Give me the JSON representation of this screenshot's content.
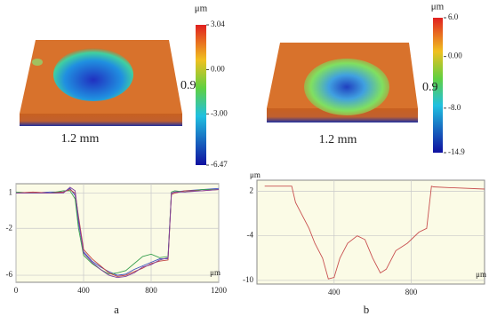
{
  "chart_data": [
    {
      "type": "surface",
      "unit": "μm",
      "x_label": "1.2 mm",
      "y_label": "0.9",
      "clim": [
        -6.47,
        3.04
      ],
      "cticks": [
        3.04,
        {
          "value": 0,
          "label": "0.00"
        },
        {
          "value": -3,
          "label": "-3.00"
        },
        -6.47
      ]
    },
    {
      "type": "surface",
      "unit": "μm",
      "x_label": "1.2 mm",
      "y_label": "0.9",
      "clim": [
        -14.9,
        6
      ],
      "cticks": [
        {
          "value": 6,
          "label": "6.0"
        },
        {
          "value": 0,
          "label": "0.00"
        },
        {
          "value": -8,
          "label": "-8.0"
        },
        -14.9
      ]
    },
    {
      "type": "line",
      "caption": "a",
      "x_unit": "μm",
      "grid": true,
      "xlim": [
        0,
        1200
      ],
      "xticks": [
        0,
        400,
        800,
        1200
      ],
      "ylim": [
        -6.6,
        1.8
      ],
      "yticks": [
        1,
        -2,
        -6
      ],
      "x": [
        0,
        100,
        200,
        280,
        320,
        350,
        370,
        400,
        450,
        500,
        550,
        600,
        650,
        700,
        750,
        800,
        850,
        900,
        920,
        940,
        1000,
        1100,
        1200
      ],
      "series": [
        {
          "color": "#3a4fc0",
          "values": [
            1.0,
            1.0,
            1.1,
            1.1,
            1.4,
            0.8,
            -1.5,
            -4.0,
            -4.8,
            -5.3,
            -5.7,
            -6.0,
            -5.9,
            -5.5,
            -5.2,
            -4.9,
            -4.6,
            -4.6,
            1.0,
            1.1,
            1.2,
            1.3,
            1.4
          ]
        },
        {
          "color": "#3aa050",
          "values": [
            1.1,
            1.0,
            1.0,
            1.2,
            1.2,
            0.5,
            -2.0,
            -4.3,
            -5.0,
            -5.5,
            -5.9,
            -5.8,
            -5.6,
            -5.0,
            -4.4,
            -4.2,
            -4.5,
            -4.4,
            1.1,
            1.2,
            1.1,
            1.3,
            1.3
          ]
        },
        {
          "color": "#c04040",
          "values": [
            1.0,
            1.1,
            1.0,
            1.1,
            1.3,
            1.0,
            -1.0,
            -3.8,
            -4.6,
            -5.2,
            -5.8,
            -6.1,
            -6.0,
            -5.7,
            -5.4,
            -5.0,
            -4.8,
            -4.7,
            0.9,
            1.0,
            1.2,
            1.2,
            1.3
          ]
        },
        {
          "color": "#8040a0",
          "values": [
            1.0,
            1.0,
            1.0,
            1.0,
            1.5,
            1.2,
            -1.2,
            -4.1,
            -4.9,
            -5.5,
            -6.0,
            -6.2,
            -6.1,
            -5.8,
            -5.3,
            -5.1,
            -4.7,
            -4.5,
            1.0,
            1.1,
            1.1,
            1.2,
            1.3
          ]
        }
      ]
    },
    {
      "type": "line",
      "caption": "b",
      "x_unit": "μm",
      "y_unit": "μm",
      "grid": true,
      "xlim": [
        0,
        1180
      ],
      "xticks": [
        400,
        800
      ],
      "ylim": [
        -10.5,
        3.5
      ],
      "yticks": [
        2,
        -4,
        -10
      ],
      "x": [
        40,
        180,
        200,
        230,
        270,
        300,
        340,
        370,
        400,
        430,
        470,
        520,
        560,
        600,
        640,
        670,
        720,
        780,
        840,
        880,
        905,
        915,
        1000,
        1180
      ],
      "series": [
        {
          "color": "#c85050",
          "values": [
            2.7,
            2.7,
            0.5,
            -1.0,
            -3.0,
            -5.0,
            -7.0,
            -9.8,
            -9.6,
            -7.0,
            -5.0,
            -4.0,
            -4.5,
            -7.0,
            -9.0,
            -8.5,
            -6.0,
            -5.0,
            -3.5,
            -3.0,
            2.7,
            2.6,
            2.5,
            2.3
          ]
        }
      ]
    }
  ]
}
